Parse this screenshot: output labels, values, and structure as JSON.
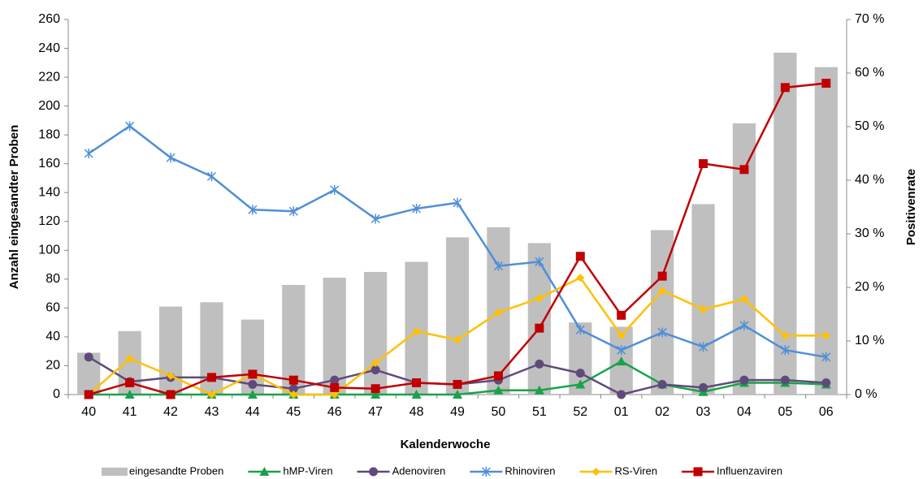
{
  "chart_data": {
    "type": "combo",
    "x_label": "Kalenderwoche",
    "y_label": "Anzahl eingesandter Proben",
    "y2_label": "Positivenrate",
    "categories": [
      "40",
      "41",
      "42",
      "43",
      "44",
      "45",
      "46",
      "47",
      "48",
      "49",
      "50",
      "51",
      "52",
      "01",
      "02",
      "03",
      "04",
      "05",
      "06"
    ],
    "ylim": [
      0,
      260
    ],
    "yticks": [
      0,
      20,
      40,
      60,
      80,
      100,
      120,
      140,
      160,
      180,
      200,
      220,
      240,
      260
    ],
    "y2lim": [
      0,
      70
    ],
    "y2ticks": [
      {
        "value": 0,
        "label": "0 %"
      },
      {
        "value": 10,
        "label": "10 %"
      },
      {
        "value": 20,
        "label": "20 %"
      },
      {
        "value": 30,
        "label": "30 %"
      },
      {
        "value": 40,
        "label": "40 %"
      },
      {
        "value": 50,
        "label": "50 %"
      },
      {
        "value": 60,
        "label": "60 %"
      },
      {
        "value": 70,
        "label": "70 %"
      }
    ],
    "series": [
      {
        "name": "eingesandte Proben",
        "type": "bar",
        "color": "#bfbfbf",
        "values": [
          29,
          44,
          61,
          64,
          52,
          76,
          81,
          85,
          92,
          109,
          116,
          105,
          50,
          47,
          114,
          132,
          188,
          237,
          227
        ]
      },
      {
        "name": "hMP-Viren",
        "type": "line",
        "marker": "triangle",
        "axis": "y2",
        "color": "#19a24a",
        "values": [
          0,
          0,
          0,
          0,
          0,
          0,
          0,
          0,
          0,
          0,
          0.8,
          0.8,
          1.9,
          6.2,
          1.9,
          0.5,
          2.2,
          2.2,
          1.9
        ]
      },
      {
        "name": "Adenoviren",
        "type": "line",
        "marker": "circle",
        "axis": "y2",
        "color": "#604a7b",
        "values": [
          7.0,
          2.4,
          3.2,
          3.2,
          1.9,
          1.1,
          2.7,
          4.6,
          2.2,
          1.9,
          2.7,
          5.7,
          4.0,
          0,
          1.9,
          1.3,
          2.7,
          2.7,
          2.2
        ]
      },
      {
        "name": "Rhinoviren",
        "type": "line",
        "marker": "star",
        "axis": "y2",
        "color": "#4f8fd8",
        "values": [
          45.0,
          50.1,
          44.2,
          40.7,
          34.5,
          34.2,
          38.2,
          32.8,
          34.7,
          35.8,
          24.0,
          24.8,
          12.1,
          8.3,
          11.6,
          8.9,
          12.9,
          8.3,
          7.0
        ]
      },
      {
        "name": "RS-Viren",
        "type": "line",
        "marker": "diamond",
        "axis": "y2",
        "color": "#ffc000",
        "values": [
          0,
          6.7,
          3.5,
          0,
          3.8,
          0,
          0,
          5.9,
          11.8,
          10.2,
          15.3,
          18.0,
          21.8,
          11.0,
          19.4,
          15.9,
          17.8,
          11.0,
          11.0
        ]
      },
      {
        "name": "Influenzaviren",
        "type": "line",
        "marker": "square",
        "axis": "y2",
        "color": "#c00000",
        "values": [
          0,
          2.2,
          0,
          3.2,
          3.8,
          2.7,
          1.3,
          1.1,
          2.2,
          1.9,
          3.5,
          12.4,
          25.8,
          14.8,
          22.1,
          43.1,
          42.0,
          57.3,
          58.1
        ]
      }
    ]
  }
}
